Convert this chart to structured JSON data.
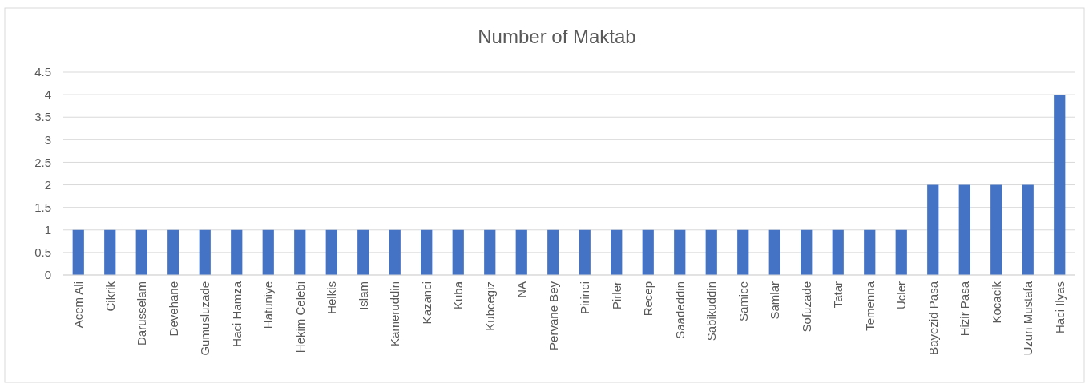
{
  "chart_data": {
    "type": "bar",
    "title": "Number of Maktab",
    "categories": [
      "Acem Ali",
      "Cikrik",
      "Darusselam",
      "Devehane",
      "Gumusluzade",
      "Haci Hamza",
      "Hatuniye",
      "Hekim Celebi",
      "Helkis",
      "Islam",
      "Kameruddin",
      "Kazanci",
      "Kuba",
      "Kubcegiz",
      "NA",
      "Pervane Bey",
      "Pirinci",
      "Pirler",
      "Recep",
      "Saadeddin",
      "Sabikuddin",
      "Samice",
      "Samlar",
      "Sofuzade",
      "Tatar",
      "Temenna",
      "Ucler",
      "Bayezid Pasa",
      "Hizir Pasa",
      "Kocacik",
      "Uzun Mustafa",
      "Haci Ilyas"
    ],
    "values": [
      1,
      1,
      1,
      1,
      1,
      1,
      1,
      1,
      1,
      1,
      1,
      1,
      1,
      1,
      1,
      1,
      1,
      1,
      1,
      1,
      1,
      1,
      1,
      1,
      1,
      1,
      1,
      2,
      2,
      2,
      2,
      4
    ],
    "color": "#4472c4",
    "ylim": [
      0,
      4.5
    ],
    "yticks": [
      0,
      0.5,
      1,
      1.5,
      2,
      2.5,
      3,
      3.5,
      4,
      4.5
    ],
    "grid": true
  }
}
